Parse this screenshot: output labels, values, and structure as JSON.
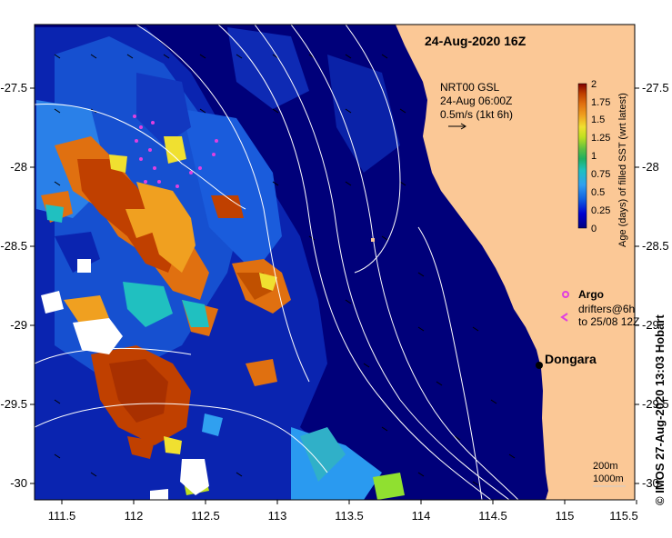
{
  "map": {
    "timestamp": "24-Aug-2020 16Z",
    "product": {
      "line1": "NRT00 GSL",
      "line2": "24-Aug 06:00Z",
      "line3": "0.5m/s (1kt 6h)"
    },
    "y_ticks": [
      "-27.5",
      "-28",
      "-28.5",
      "-29",
      "-29.5",
      "-30"
    ],
    "x_ticks": [
      "111.5",
      "112",
      "112.5",
      "113",
      "113.5",
      "114",
      "114.5",
      "115",
      "115.5"
    ],
    "colorbar": {
      "title": "Age (days) of filled SST (wrt latest)",
      "ticks": [
        "2",
        "1.75",
        "1.5",
        "1.25",
        "1",
        "0.75",
        "0.5",
        "0.25",
        "0"
      ],
      "colors": [
        "#000080",
        "#0000d0",
        "#1060e0",
        "#30a0f0",
        "#20c0c0",
        "#20b060",
        "#60c040",
        "#c0e020",
        "#f0e030",
        "#f0a020",
        "#e07010",
        "#c04000",
        "#800000"
      ]
    },
    "legend": {
      "argo_label": "Argo",
      "drifters_line1": "drifters@6h",
      "drifters_line2": "to 25/08 12Z"
    },
    "place": {
      "name": "Dongara"
    },
    "depth_labels": {
      "contour1": "200m",
      "contour2": "1000m"
    },
    "credit": "©  IMOS 27-Aug-2020 13:03 Hobart",
    "colors": {
      "land": "#fbc896",
      "ocean": "#00007a",
      "contour": "#ffffff",
      "argo": "#e040e0"
    }
  }
}
